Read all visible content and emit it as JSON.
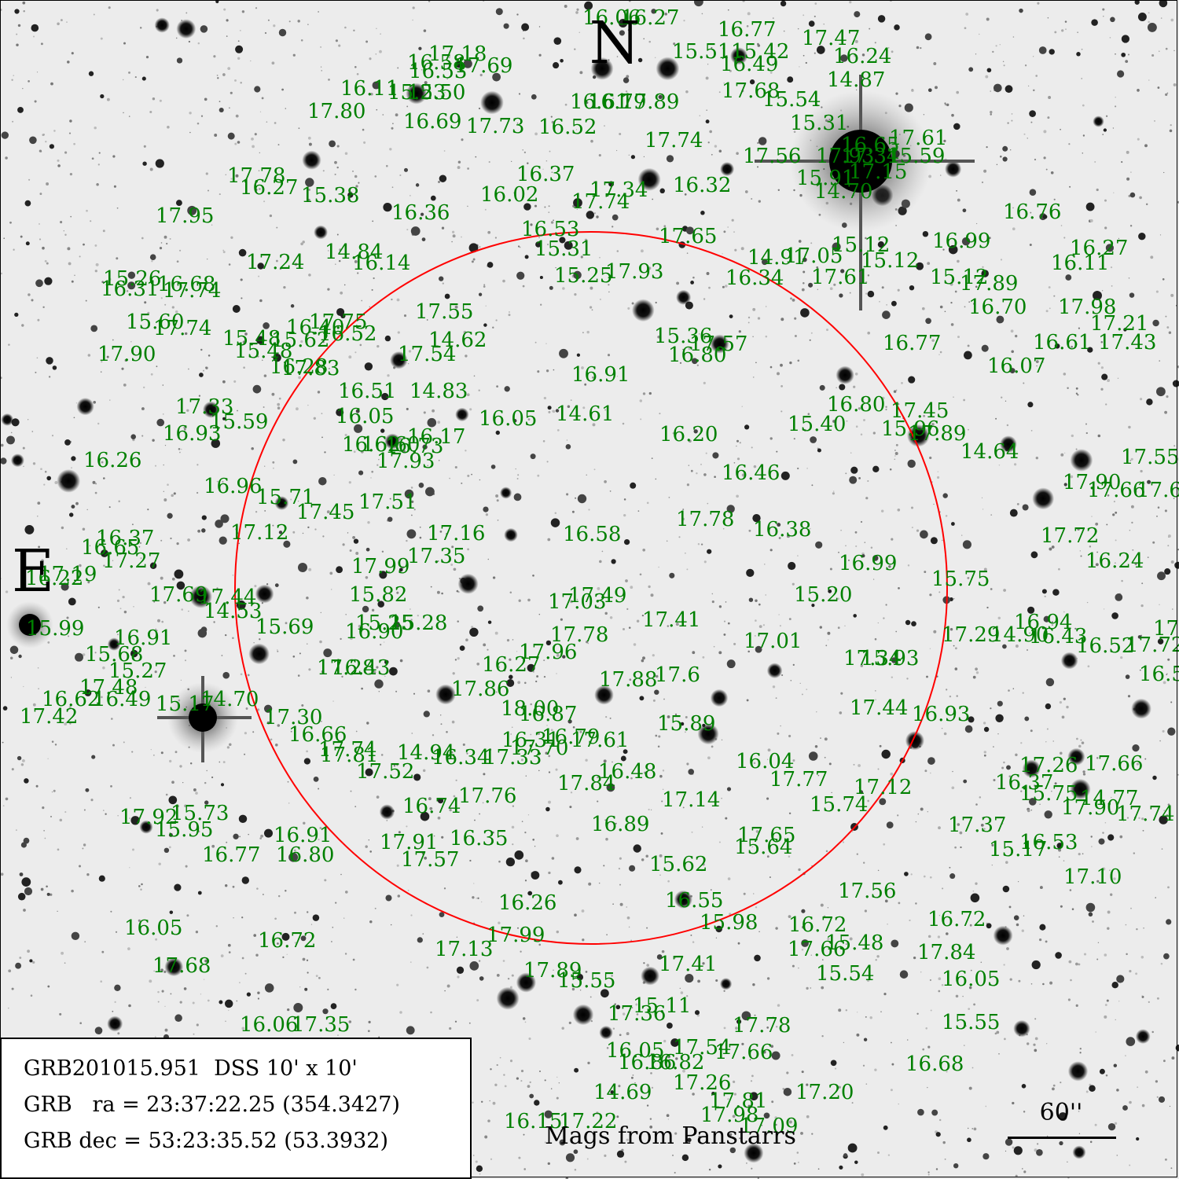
{
  "compass": {
    "north": "N",
    "east": "E"
  },
  "caption": "Mags from Panstarrs",
  "scale_bar_label": "60''",
  "info": {
    "line1": "GRB201015.951  DSS 10' x 10'",
    "line2": "GRB   ra = 23:37:22.25 (354.3427)",
    "line3": "GRB dec = 53:23:35.52 (53.3932)"
  },
  "colors": {
    "magnitude_label": "#008000",
    "circle": "#ff0000",
    "background": "#ffffff",
    "text": "#000000"
  },
  "magnitudes": [
    "16.06",
    "16.27",
    "16.77",
    "17.47",
    "15.51",
    "15.42",
    "16.24",
    "16.49",
    "17.18",
    "17.69",
    "16.58",
    "16.53",
    "14.87",
    "16.11",
    "15.23",
    "15.50",
    "17.80",
    "16.69",
    "17.73",
    "16.52",
    "16.61",
    "16.79",
    "17.89",
    "17.68",
    "15.54",
    "15.31",
    "17.74",
    "17.61",
    "16.65",
    "17.56",
    "17.93",
    "17.34",
    "15.59",
    "15.91",
    "17.15",
    "14.70",
    "17.78",
    "16.27",
    "15.38",
    "16.37",
    "16.02",
    "17.34",
    "17.74",
    "16.32",
    "17.95",
    "16.36",
    "16.53",
    "17.65",
    "16.76",
    "15.31",
    "16.99",
    "16.27",
    "17.24",
    "14.84",
    "16.14",
    "15.12",
    "14.91",
    "17.05",
    "15.12",
    "16.11",
    "15.25",
    "17.93",
    "15.26",
    "16.31",
    "16.68",
    "17.74",
    "16.34",
    "17.61",
    "15.12",
    "17.89",
    "16.70",
    "17.98",
    "17.55",
    "15.60",
    "17.74",
    "17.75",
    "16.40",
    "14.62",
    "15.48",
    "16.52",
    "17.21",
    "15.48",
    "15.62",
    "17.54",
    "15.36",
    "17.57",
    "16.80",
    "16.77",
    "16.61",
    "17.43",
    "17.90",
    "16.28",
    "17.83",
    "16.91",
    "16.07",
    "16.51",
    "14.83",
    "16.80",
    "17.33",
    "17.45",
    "16.05",
    "16.05",
    "14.61",
    "15.40",
    "15.59",
    "15.96",
    "17.89",
    "16.93",
    "16.62",
    "16.60",
    "16.17",
    "16.73",
    "16.20",
    "14.64",
    "17.93",
    "16.26",
    "16.46",
    "17.55",
    "16.96",
    "15.71",
    "17.51",
    "17.90",
    "17.66",
    "17.6",
    "17.45",
    "17.78",
    "16.38",
    "16.37",
    "17.12",
    "16.65",
    "17.16",
    "16.58",
    "17.72",
    "17.27",
    "17.35",
    "16.99",
    "16.24",
    "17.99",
    "17.19",
    "16.22",
    "17.69",
    "17.44",
    "17.49",
    "15.82",
    "17.03",
    "15.75",
    "15.20",
    "14.53",
    "15.25",
    "15.28",
    "17.41",
    "15.99",
    "15.69",
    "16.90",
    "16.94",
    "16.91",
    "17.78",
    "17.29",
    "14.90",
    "16.43",
    "16.52",
    "17.62",
    "15.68",
    "17.96",
    "17.01",
    "17.72",
    "17.28",
    "16.43",
    "17.34",
    "15.93",
    "15.27",
    "16.27",
    "17.88",
    "17.6",
    "16.58",
    "17.48",
    "17.86",
    "16.62",
    "16.49",
    "17.42",
    "15.17",
    "14.70",
    "18.00",
    "16.87",
    "17.44",
    "16.93",
    "17.30",
    "15.89",
    "16.66",
    "17.74",
    "16.31",
    "17.61",
    "16.79",
    "17.81",
    "14.94",
    "16.34",
    "17.33",
    "17.70",
    "16.04",
    "17.26",
    "17.66",
    "17.52",
    "16.48",
    "17.84",
    "17.77",
    "17.12",
    "16.37",
    "15.75",
    "14.77",
    "17.92",
    "15.73",
    "16.74",
    "17.76",
    "17.14",
    "15.74",
    "17.90",
    "17.74",
    "15.95",
    "16.89",
    "16.91",
    "17.91",
    "16.35",
    "17.65",
    "17.37",
    "16.53",
    "16.77",
    "16.80",
    "15.64",
    "15.17",
    "17.57",
    "15.62",
    "17.10",
    "17.56",
    "16.26",
    "16.55",
    "16.72",
    "16.05",
    "15.98",
    "16.72",
    "16.72",
    "17.99",
    "17.13",
    "15.48",
    "17.66",
    "17.84",
    "17.68",
    "17.89",
    "17.41",
    "15.55",
    "15.54",
    "16.05",
    "15.11",
    "17.36",
    "17.78",
    "16.06",
    "17.35",
    "15.55",
    "16.05",
    "17.54",
    "17.66",
    "16.86",
    "16.82",
    "16.68",
    "17.26",
    "14.69",
    "17.20",
    "17.81",
    "16.15",
    "17.22",
    "17.98",
    "17.09"
  ]
}
